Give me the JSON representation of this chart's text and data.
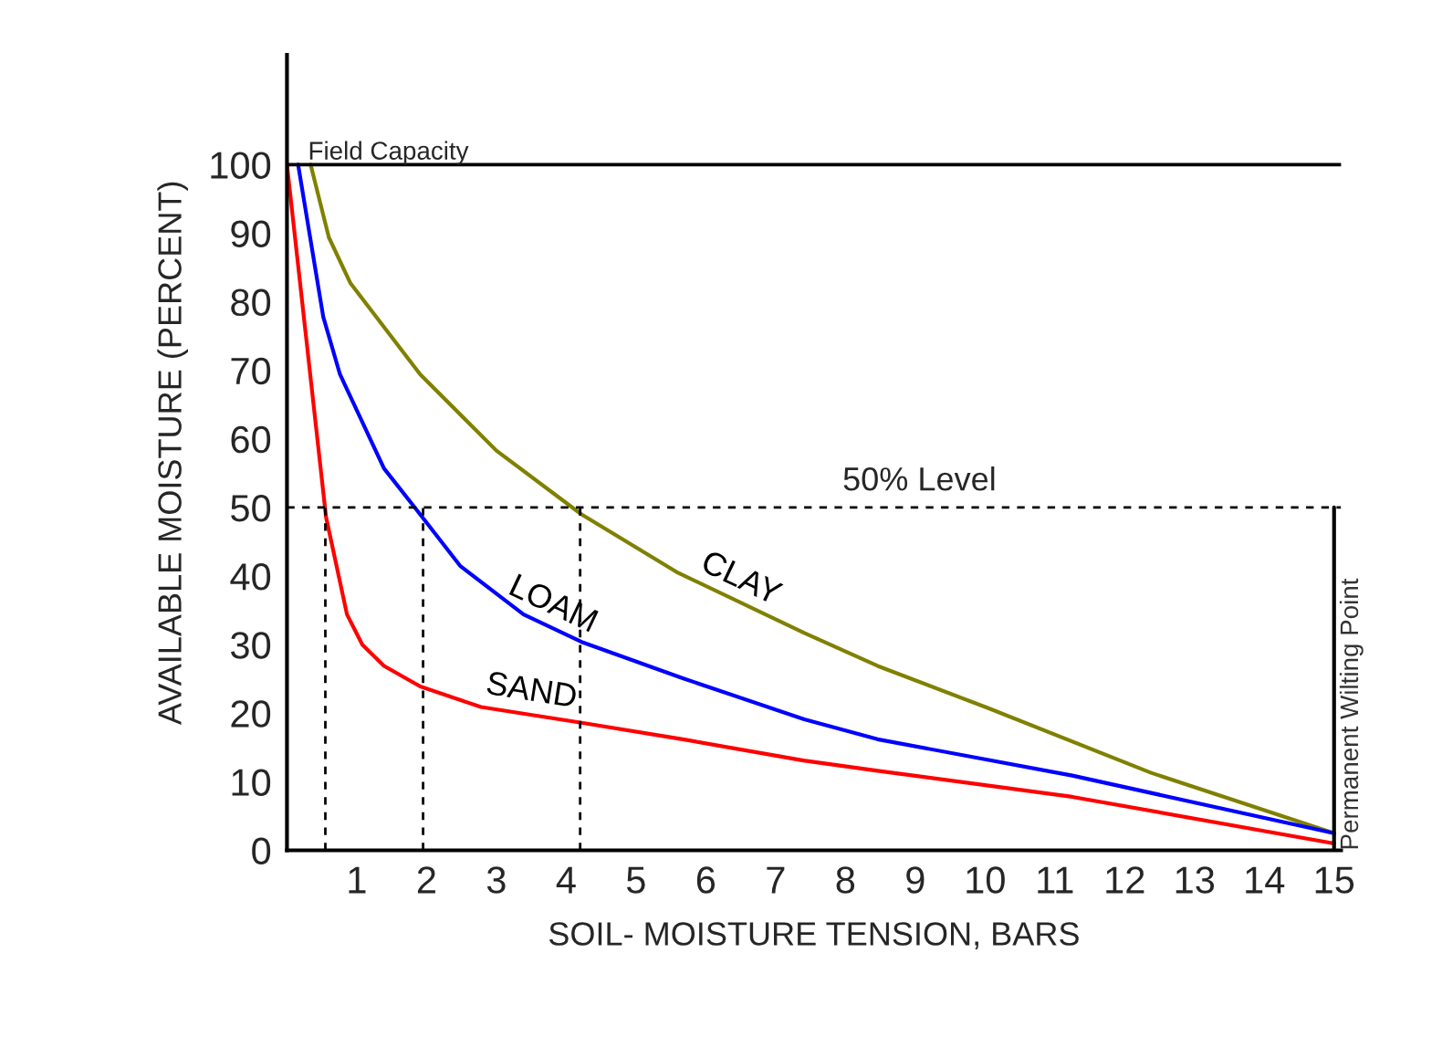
{
  "chart_data": {
    "type": "line",
    "xlabel": "SOIL- MOISTURE TENSION, BARS",
    "ylabel": "AVAILABLE MOISTURE (PERCENT)",
    "xlim": [
      0,
      15.1
    ],
    "ylim": [
      0,
      116
    ],
    "xticks": [
      1,
      2,
      3,
      4,
      5,
      6,
      7,
      8,
      9,
      10,
      11,
      12,
      13,
      14,
      15
    ],
    "yticks": [
      0,
      10,
      20,
      30,
      40,
      50,
      60,
      70,
      80,
      90,
      100
    ],
    "grid": false,
    "legend": false,
    "marker": "none",
    "line_style": "solid",
    "series": [
      {
        "name": "CLAY",
        "color": "#808000",
        "x": [
          0.34,
          0.6,
          0.91,
          1.91,
          3.0,
          4.22,
          5.58,
          7.41,
          8.46,
          10.03,
          12.38,
          15
        ],
        "values": [
          100,
          89.4,
          82.7,
          69.4,
          58.3,
          49,
          40.6,
          31.7,
          26.9,
          20.8,
          11.3,
          2.5
        ]
      },
      {
        "name": "LOAM",
        "color": "#0000ff",
        "x": [
          0.16,
          0.52,
          0.76,
          1.39,
          1.87,
          2.48,
          3.39,
          4.22,
          5.67,
          7.41,
          8.46,
          11.25,
          15
        ],
        "values": [
          100,
          77.8,
          69.4,
          55.7,
          49.5,
          41.5,
          34.4,
          30.4,
          25.1,
          19.1,
          16.2,
          10.9,
          2.5
        ]
      },
      {
        "name": "SAND",
        "color": "#ff0000",
        "x": [
          0,
          0.56,
          0.86,
          1.08,
          1.39,
          1.91,
          2.78,
          4.22,
          5.67,
          7.4,
          8.46,
          11.25,
          15
        ],
        "values": [
          100,
          48.6,
          34.4,
          30,
          26.9,
          23.9,
          20.9,
          18.6,
          16.2,
          13.1,
          11.6,
          7.8,
          1
        ]
      }
    ],
    "ref_lines": [
      {
        "axis": "y",
        "value": 100,
        "label": "Field Capacity",
        "color": "#000000",
        "line_style": "solid"
      },
      {
        "axis": "y",
        "value": 50,
        "label": "50% Level",
        "color": "#000000",
        "line_style": "dotted"
      },
      {
        "axis": "x",
        "value": 0.55,
        "color": "#000000",
        "line_style": "dotted"
      },
      {
        "axis": "x",
        "value": 1.95,
        "color": "#000000",
        "line_style": "dotted"
      },
      {
        "axis": "x",
        "value": 4.2,
        "color": "#000000",
        "line_style": "dotted"
      },
      {
        "axis": "x",
        "value": 15,
        "label": "Permanent Wilting Point",
        "color": "#000000",
        "line_style": "solid"
      }
    ]
  }
}
